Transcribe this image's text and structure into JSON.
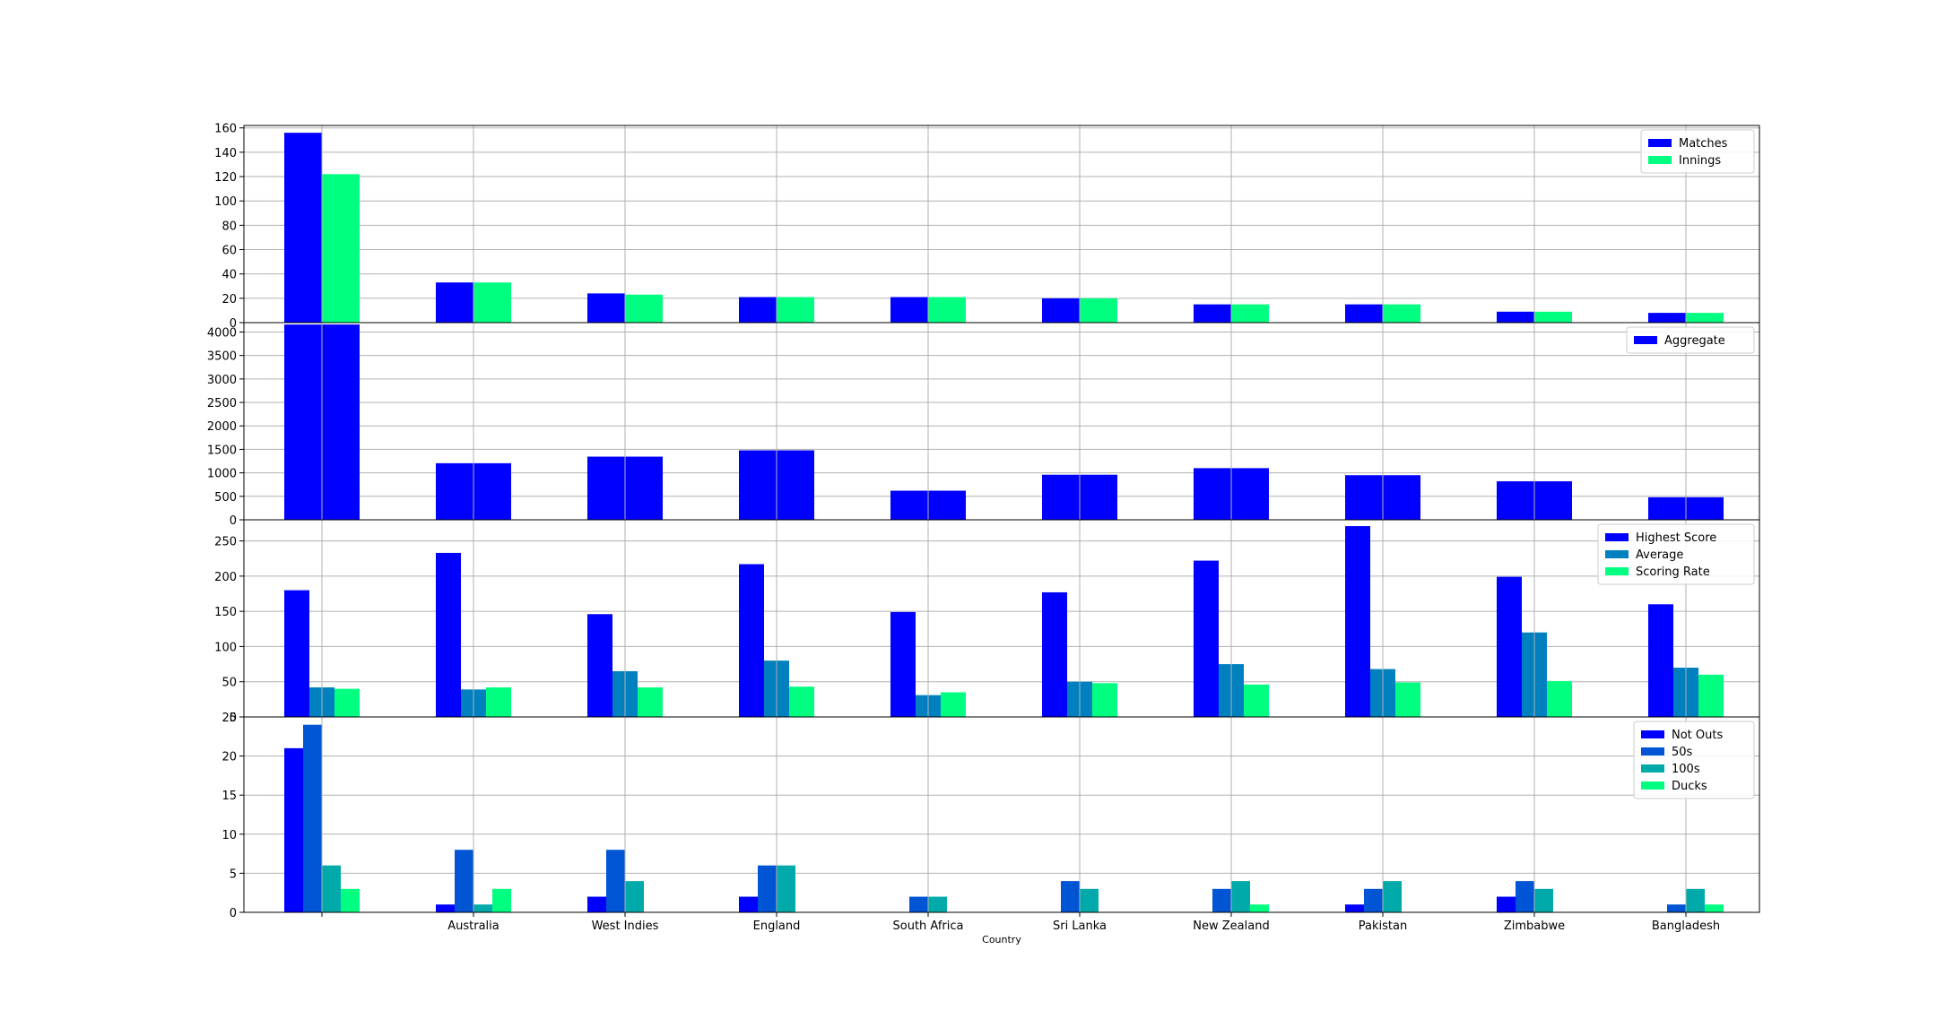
{
  "chart_data": {
    "type": "bar",
    "xlabel": "Country",
    "categories": [
      "",
      "Australia",
      "West Indies",
      "England",
      "South Africa",
      "Sri Lanka",
      "New Zealand",
      "Pakistan",
      "Zimbabwe",
      "Bangladesh"
    ],
    "grid": true,
    "panels": [
      {
        "ylim": [
          0,
          162
        ],
        "yticks": [
          0,
          20,
          40,
          60,
          80,
          100,
          120,
          140,
          160
        ],
        "legend_position": "upper-right",
        "series": [
          {
            "name": "Matches",
            "color": "#0000ff",
            "values": [
              156,
              33,
              24,
              21,
              21,
              20,
              15,
              15,
              9,
              8
            ]
          },
          {
            "name": "Innings",
            "color": "#00ff80",
            "values": [
              122,
              33,
              23,
              21,
              21,
              20,
              15,
              15,
              9,
              8
            ]
          }
        ]
      },
      {
        "ylim": [
          0,
          4200
        ],
        "yticks": [
          0,
          500,
          1000,
          1500,
          2000,
          2500,
          3000,
          3500,
          4000
        ],
        "legend_position": "upper-right",
        "series": [
          {
            "name": "Aggregate",
            "color": "#0000ff",
            "values": [
              4160,
              1205,
              1345,
              1480,
              620,
              960,
              1100,
              950,
              820,
              480
            ]
          }
        ]
      },
      {
        "ylim": [
          0,
          280
        ],
        "yticks": [
          0,
          50,
          100,
          150,
          200,
          250
        ],
        "legend_position": "upper-right",
        "series": [
          {
            "name": "Highest Score",
            "color": "#0000ff",
            "values": [
              180,
              233,
              146,
              217,
              149,
              177,
              222,
              271,
              199,
              160
            ]
          },
          {
            "name": "Average",
            "color": "#0080bf",
            "values": [
              42,
              39,
              65,
              80,
              31,
              50,
              75,
              68,
              120,
              70
            ]
          },
          {
            "name": "Scoring Rate",
            "color": "#00ff80",
            "values": [
              40,
              42,
              42,
              43,
              35,
              48,
              46,
              49,
              51,
              60
            ]
          }
        ]
      },
      {
        "ylim": [
          0,
          25
        ],
        "yticks": [
          0,
          5,
          10,
          15,
          20,
          25
        ],
        "legend_position": "upper-right",
        "series": [
          {
            "name": "Not Outs",
            "color": "#0000ff",
            "values": [
              21,
              1,
              2,
              2,
              0,
              0,
              0,
              1,
              2,
              0
            ]
          },
          {
            "name": "50s",
            "color": "#0055d4",
            "values": [
              24,
              8,
              8,
              6,
              2,
              4,
              3,
              3,
              4,
              1
            ]
          },
          {
            "name": "100s",
            "color": "#00aaaa",
            "values": [
              6,
              1,
              4,
              6,
              2,
              3,
              4,
              4,
              3,
              3
            ]
          },
          {
            "name": "Ducks",
            "color": "#00ff80",
            "values": [
              3,
              3,
              0,
              0,
              0,
              0,
              1,
              0,
              0,
              1
            ]
          }
        ]
      }
    ]
  }
}
